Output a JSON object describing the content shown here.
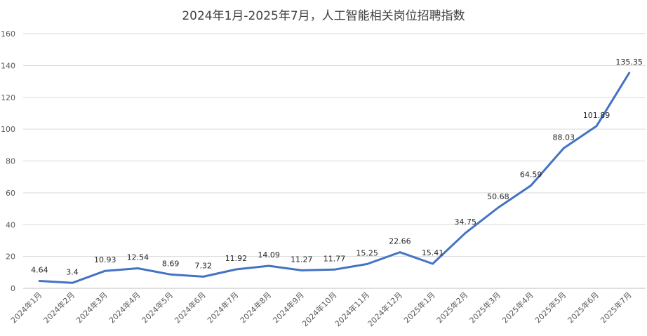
{
  "chart_data": {
    "type": "line",
    "title": "2024年1月-2025年7月，人工智能相关岗位招聘指数",
    "xlabel": "",
    "ylabel": "",
    "ylim": [
      0,
      160
    ],
    "yticks": [
      0,
      20,
      40,
      60,
      80,
      100,
      120,
      140,
      160
    ],
    "grid": true,
    "legend": "none",
    "categories": [
      "2024年1月",
      "2024年2月",
      "2024年3月",
      "2024年4月",
      "2024年5月",
      "2024年6月",
      "2024年7月",
      "2024年8月",
      "2024年9月",
      "2024年10月",
      "2024年11月",
      "2024年12月",
      "2025年1月",
      "2025年2月",
      "2025年3月",
      "2025年4月",
      "2025年5月",
      "2025年6月",
      "2025年7月"
    ],
    "series": [
      {
        "color": "#4472c4",
        "values": [
          4.64,
          3.4,
          10.93,
          12.54,
          8.69,
          7.32,
          11.92,
          14.09,
          11.27,
          11.77,
          15.25,
          22.66,
          15.41,
          34.75,
          50.68,
          64.59,
          88.03,
          101.89,
          135.35
        ],
        "labels": [
          "4.64",
          "3.4",
          "10.93",
          "12.54",
          "8.69",
          "7.32",
          "11.92",
          "14.09",
          "11.27",
          "11.77",
          "15.25",
          "22.66",
          "15.41",
          "34.75",
          "50.68",
          "64.59",
          "88.03",
          "101.89",
          "135.35"
        ]
      }
    ]
  }
}
